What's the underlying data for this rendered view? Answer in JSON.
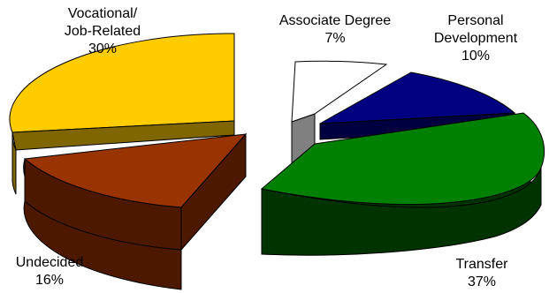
{
  "chart_data": {
    "type": "pie",
    "style": "3d-exploded",
    "slices": [
      {
        "label_lines": [
          "Vocational/",
          "Job-Related"
        ],
        "value_text": "30%",
        "value": 30,
        "color": "#FFCC00"
      },
      {
        "label_lines": [
          "Associate Degree"
        ],
        "value_text": "7%",
        "value": 7,
        "color": "#FFFFFF"
      },
      {
        "label_lines": [
          "Personal",
          "Development"
        ],
        "value_text": "10%",
        "value": 10,
        "color": "#000080"
      },
      {
        "label_lines": [
          "Transfer"
        ],
        "value_text": "37%",
        "value": 37,
        "color": "#008000"
      },
      {
        "label_lines": [
          "Undecided"
        ],
        "value_text": "16%",
        "value": 16,
        "color": "#993300"
      }
    ]
  }
}
